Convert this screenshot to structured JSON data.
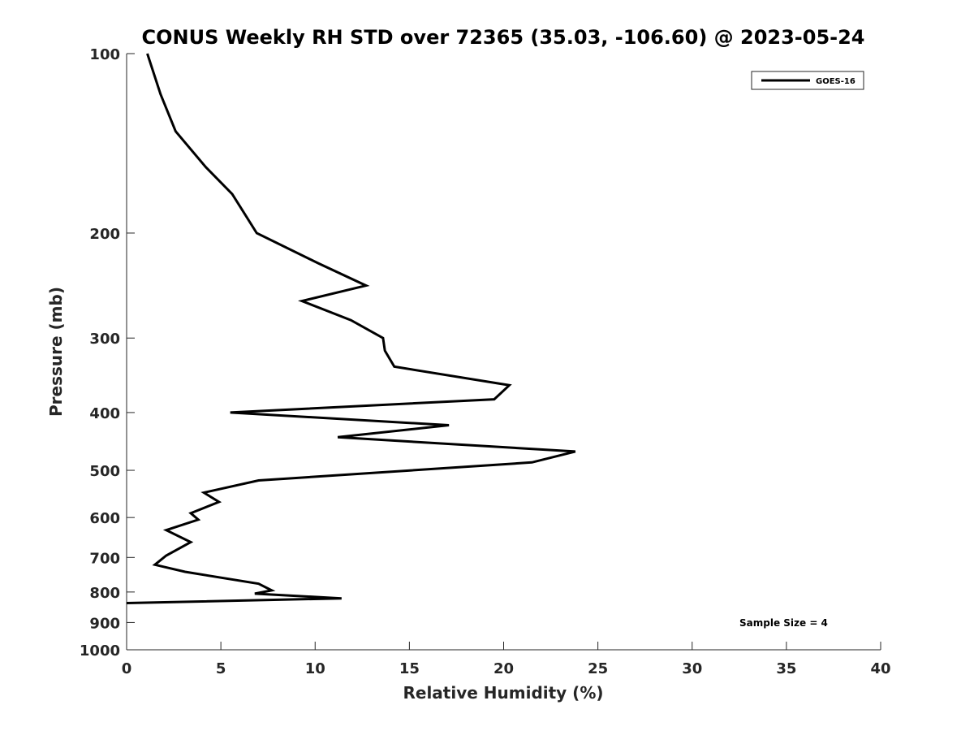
{
  "chart_data": {
    "type": "line",
    "title": "CONUS Weekly RH STD over 72365 (35.03, -106.60) @ 2023-05-24",
    "xlabel": "Relative Humidity (%)",
    "ylabel": "Pressure (mb)",
    "xlim": [
      0,
      40
    ],
    "ylim": [
      100,
      1000
    ],
    "yscale": "log",
    "y_inverted": true,
    "grid": false,
    "legend_position": "top-right",
    "x_ticks": [
      0,
      5,
      10,
      15,
      20,
      25,
      30,
      35,
      40
    ],
    "x_tick_labels": [
      "0",
      "5",
      "10",
      "15",
      "20",
      "25",
      "30",
      "35",
      "40"
    ],
    "y_ticks": [
      100,
      200,
      300,
      400,
      500,
      600,
      700,
      800,
      900,
      1000
    ],
    "y_tick_labels": [
      "100",
      "200",
      "300",
      "400",
      "500",
      "600",
      "700",
      "800",
      "900",
      "1000"
    ],
    "series": [
      {
        "name": "GOES-16",
        "color": "#000000",
        "x": [
          1.1,
          1.8,
          2.6,
          4.2,
          5.6,
          6.9,
          10.2,
          12.7,
          9.3,
          11.9,
          13.6,
          13.7,
          14.2,
          20.3,
          19.5,
          5.5,
          17.1,
          11.2,
          23.8,
          21.5,
          7.0,
          4.1,
          4.9,
          3.4,
          3.8,
          2.1,
          3.4,
          2.1,
          1.5,
          3.1,
          7.0,
          7.7,
          6.8,
          11.4,
          0
        ],
        "y": [
          100,
          117,
          135,
          155,
          172,
          200,
          225,
          245,
          260,
          280,
          300,
          315,
          335,
          360,
          380,
          400,
          420,
          440,
          465,
          485,
          520,
          545,
          565,
          590,
          605,
          630,
          660,
          695,
          720,
          740,
          775,
          795,
          805,
          820,
          835
        ]
      }
    ],
    "annotations": [
      "Sample Size = 4"
    ]
  }
}
